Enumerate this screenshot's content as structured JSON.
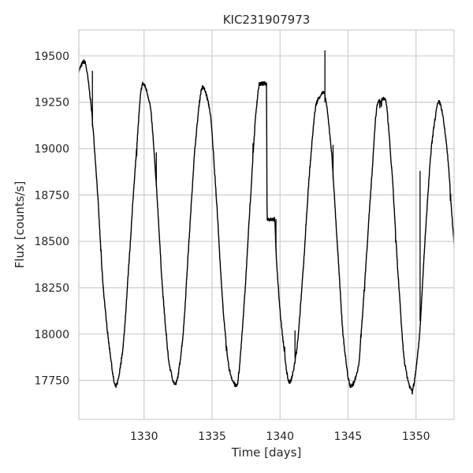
{
  "chart_data": {
    "type": "line",
    "title": "KIC231907973",
    "xlabel": "Time [days]",
    "ylabel": "Flux [counts/s]",
    "xlim": [
      1325.2,
      1352.8
    ],
    "ylim": [
      17540,
      19640
    ],
    "xticks": [
      1330,
      1335,
      1340,
      1345,
      1350
    ],
    "yticks": [
      17750,
      18000,
      18250,
      18500,
      18750,
      19000,
      19250,
      19500
    ],
    "grid": true,
    "legend": "none",
    "series": [
      {
        "color": "#000000",
        "x": [
          1325.2,
          1325.6,
          1326.0,
          1326.5,
          1327.0,
          1327.5,
          1327.9,
          1328.4,
          1328.9,
          1329.4,
          1329.9,
          1330.4,
          1330.9,
          1331.4,
          1331.9,
          1332.3,
          1332.8,
          1333.3,
          1333.8,
          1334.3,
          1334.8,
          1335.3,
          1335.8,
          1336.3,
          1336.8,
          1337.3,
          1337.8,
          1338.3,
          1338.5,
          1339.0,
          1339.05,
          1339.6,
          1339.7,
          1340.2,
          1340.7,
          1341.2,
          1341.7,
          1342.2,
          1342.7,
          1343.2,
          1343.7,
          1344.2,
          1344.7,
          1345.2,
          1345.7,
          1346.2,
          1346.7,
          1347.2,
          1347.7,
          1348.2,
          1348.7,
          1349.2,
          1349.7,
          1350.2,
          1350.7,
          1351.2,
          1351.7,
          1352.2,
          1352.8
        ],
        "y": [
          19420,
          19470,
          19300,
          18850,
          18250,
          17900,
          17720,
          17900,
          18400,
          18950,
          19350,
          19250,
          18800,
          18200,
          17820,
          17730,
          17950,
          18500,
          19050,
          19330,
          19220,
          18750,
          18150,
          17800,
          17720,
          18100,
          18700,
          19250,
          19350,
          19350,
          18620,
          18620,
          18450,
          17980,
          17740,
          17900,
          18350,
          18900,
          19250,
          19300,
          19050,
          18500,
          17950,
          17720,
          17800,
          18250,
          18800,
          19250,
          19270,
          18900,
          18300,
          17830,
          17700,
          17950,
          18550,
          19050,
          19250,
          19050,
          18480
        ]
      }
    ],
    "spikes": [
      {
        "x": 1326.2,
        "y": 19420
      },
      {
        "x": 1330.9,
        "y": 18980
      },
      {
        "x": 1339.7,
        "y": 18620
      },
      {
        "x": 1343.3,
        "y": 19530
      },
      {
        "x": 1343.9,
        "y": 19020
      },
      {
        "x": 1350.3,
        "y": 18880
      },
      {
        "x": 1341.1,
        "y": 18020
      }
    ]
  }
}
